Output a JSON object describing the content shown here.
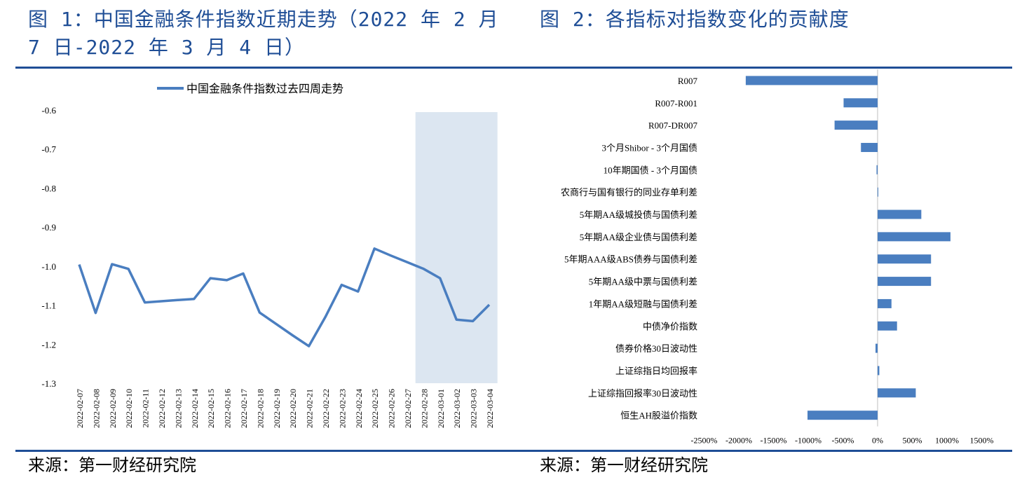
{
  "figure1": {
    "title": "图 1：中国金融条件指数近期走势（2022 年 2 月 7 日-2022 年 3 月 4 日）",
    "source": "来源：第一财经研究院"
  },
  "figure2": {
    "title": "图 2：各指标对指数变化的贡献度",
    "source": "来源：第一财经研究院"
  },
  "colors": {
    "accent": "#1F4E96",
    "series": "#4A7EC0",
    "highlight": "#DCE6F1"
  },
  "chart_data": [
    {
      "type": "line",
      "legend": "top-left",
      "series": [
        {
          "name": "中国金融条件指数过去四周走势",
          "values": [
            -0.996,
            -1.12,
            -0.995,
            -1.007,
            -1.093,
            -1.09,
            -1.087,
            -1.084,
            -1.031,
            -1.036,
            -1.019,
            -1.119,
            -1.148,
            -1.177,
            -1.205,
            -1.131,
            -1.048,
            -1.065,
            -0.955,
            -0.973,
            -0.99,
            -1.007,
            -1.031,
            -1.137,
            -1.141,
            -1.099
          ]
        }
      ],
      "x": [
        "2022-02-07",
        "2022-02-08",
        "2022-02-09",
        "2022-02-10",
        "2022-02-11",
        "2022-02-12",
        "2022-02-13",
        "2022-02-14",
        "2022-02-15",
        "2022-02-16",
        "2022-02-17",
        "2022-02-18",
        "2022-02-19",
        "2022-02-20",
        "2022-02-21",
        "2022-02-22",
        "2022-02-23",
        "2022-02-24",
        "2022-02-25",
        "2022-02-26",
        "2022-02-27",
        "2022-02-28",
        "2022-03-01",
        "2022-03-02",
        "2022-03-03",
        "2022-03-04"
      ],
      "yticks": [
        "-0.6",
        "-0.7",
        "-0.8",
        "-0.9",
        "-1.0",
        "-1.1",
        "-1.2",
        "-1.3"
      ],
      "ylim": [
        -1.3,
        -0.6
      ],
      "highlight_range": [
        "2022-02-28",
        "2022-03-04"
      ]
    },
    {
      "type": "bar",
      "orientation": "horizontal",
      "categories": [
        "R007",
        "R007-R001",
        "R007-DR007",
        "3个月Shibor - 3个月国债",
        "10年期国债 - 3个月国债",
        "农商行与国有银行的同业存单利差",
        "5年期AA级城投债与国债利差",
        "5年期AA级企业债与国债利差",
        "5年期AAA级ABS债券与国债利差",
        "5年期AA级中票与国债利差",
        "1年期AA级短融与国债利差",
        "中债净价指数",
        "债券价格30日波动性",
        "上证综指日均回报率",
        "上证综指回报率30日波动性",
        "恒生AH股溢价指数"
      ],
      "values": [
        -1900,
        -490,
        -620,
        -240,
        -15,
        10,
        630,
        1050,
        770,
        770,
        200,
        280,
        -30,
        25,
        550,
        -1010
      ],
      "xticks": [
        "-2500%",
        "-2000%",
        "-1500%",
        "-1000%",
        "-500%",
        "0%",
        "500%",
        "1000%",
        "1500%"
      ],
      "xlim": [
        -2500,
        1500
      ]
    }
  ]
}
